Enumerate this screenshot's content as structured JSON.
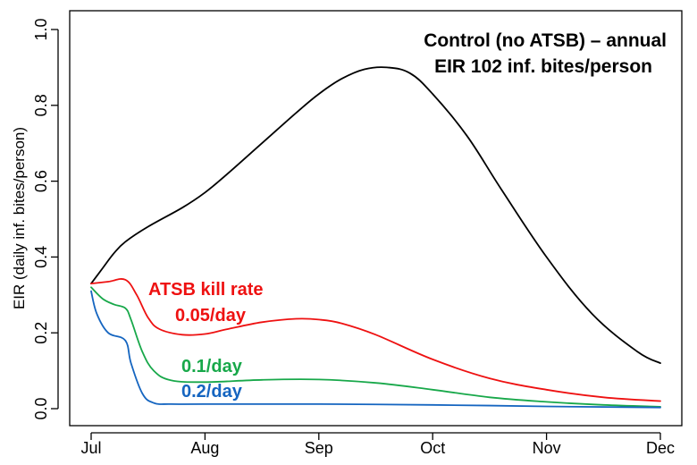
{
  "chart_data": {
    "type": "line",
    "title_lines": [
      "Control (no ATSB) – annual",
      "EIR 102 inf. bites/person"
    ],
    "ylabel": "EIR (daily inf. bites/person)",
    "xlabel": "",
    "x_tick_labels": [
      "Jul",
      "Aug",
      "Sep",
      "Oct",
      "Nov",
      "Dec"
    ],
    "y_tick_labels": [
      "0.0",
      "0.2",
      "0.4",
      "0.6",
      "0.8",
      "1.0"
    ],
    "ylim": [
      0,
      1.0
    ],
    "grid": false,
    "annotations": [
      {
        "text": "ATSB kill rate",
        "color": "#ee1111"
      },
      {
        "text": "0.05/day",
        "color": "#ee1111"
      },
      {
        "text": "0.1/day",
        "color": "#18a84a"
      },
      {
        "text": "0.2/day",
        "color": "#1565c0"
      }
    ],
    "series": [
      {
        "color": "#000000",
        "x": [
          0,
          0.1,
          0.2,
          0.3,
          0.5,
          0.8,
          1.0,
          1.2,
          1.5,
          1.8,
          2.0,
          2.2,
          2.4,
          2.6,
          2.8,
          3.0,
          3.3,
          3.6,
          4.0,
          4.4,
          4.8,
          5.0
        ],
        "y": [
          0.33,
          0.37,
          0.41,
          0.44,
          0.48,
          0.53,
          0.57,
          0.62,
          0.7,
          0.78,
          0.83,
          0.87,
          0.895,
          0.9,
          0.885,
          0.83,
          0.72,
          0.58,
          0.4,
          0.25,
          0.15,
          0.12
        ]
      },
      {
        "color": "#ee1111",
        "x": [
          0,
          0.15,
          0.3,
          0.4,
          0.5,
          0.6,
          0.8,
          1.0,
          1.2,
          1.5,
          1.8,
          2.0,
          2.2,
          2.5,
          3.0,
          3.5,
          4.0,
          4.5,
          5.0
        ],
        "y": [
          0.33,
          0.335,
          0.34,
          0.3,
          0.24,
          0.21,
          0.195,
          0.197,
          0.21,
          0.228,
          0.237,
          0.235,
          0.225,
          0.195,
          0.13,
          0.08,
          0.05,
          0.03,
          0.02
        ]
      },
      {
        "color": "#18a84a",
        "x": [
          0,
          0.1,
          0.2,
          0.3,
          0.35,
          0.45,
          0.55,
          0.7,
          1.0,
          1.5,
          2.0,
          2.5,
          3.0,
          3.5,
          4.0,
          4.5,
          5.0
        ],
        "y": [
          0.32,
          0.29,
          0.275,
          0.265,
          0.235,
          0.15,
          0.1,
          0.075,
          0.07,
          0.076,
          0.077,
          0.068,
          0.05,
          0.03,
          0.018,
          0.01,
          0.005
        ]
      },
      {
        "color": "#1565c0",
        "x": [
          0,
          0.05,
          0.15,
          0.3,
          0.35,
          0.45,
          0.55,
          0.7,
          1.0,
          2.0,
          3.0,
          4.0,
          5.0
        ],
        "y": [
          0.31,
          0.25,
          0.2,
          0.18,
          0.12,
          0.04,
          0.015,
          0.012,
          0.012,
          0.012,
          0.01,
          0.006,
          0.003
        ]
      }
    ]
  }
}
